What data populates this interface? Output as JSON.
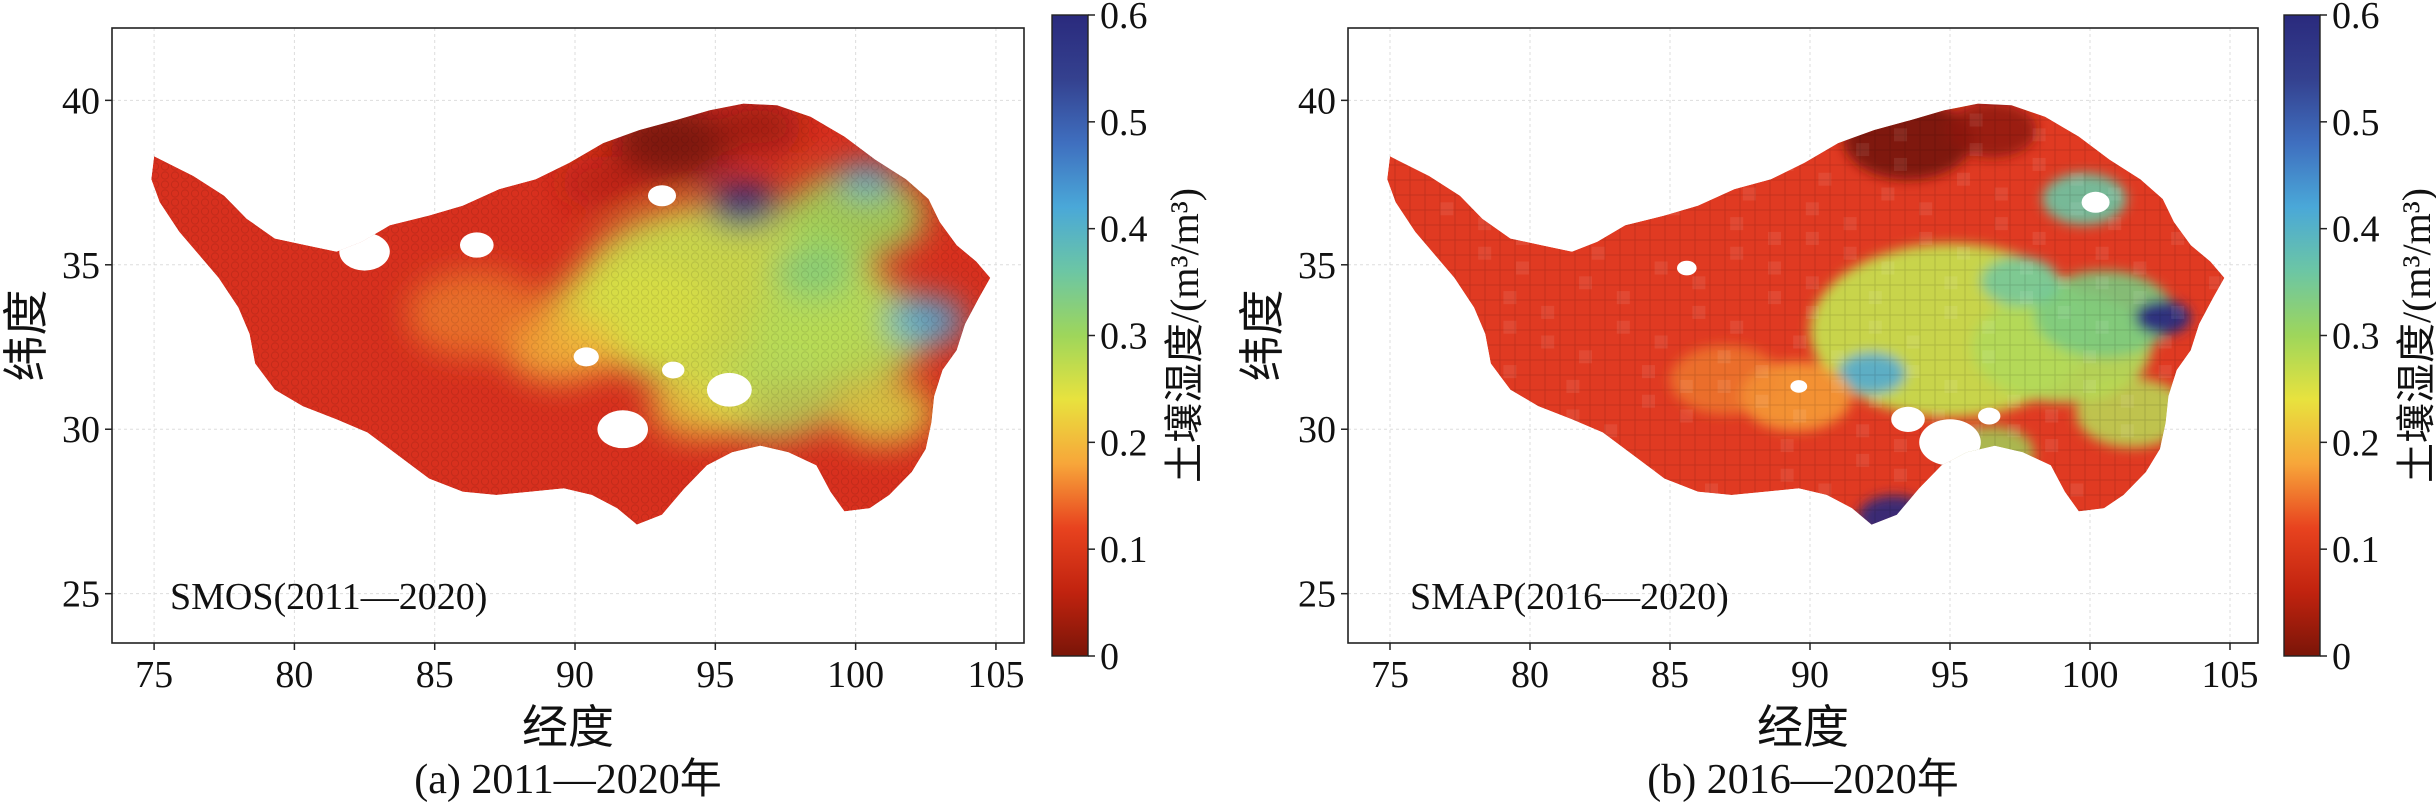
{
  "panels": [
    {
      "id": "a",
      "annotation": "SMOS(2011—2020)",
      "caption": "(a) 2011—2020年",
      "xlabel": "经度",
      "ylabel": "纬度",
      "xticks": [
        "75",
        "80",
        "85",
        "90",
        "95",
        "100",
        "105"
      ],
      "yticks": [
        "25",
        "30",
        "35",
        "40"
      ],
      "xlim": [
        73.5,
        106
      ],
      "ylim": [
        23.5,
        42.2
      ],
      "colorbar": {
        "label": "土壤湿度/(m³/m³)",
        "ticks": [
          "0",
          "0.1",
          "0.2",
          "0.3",
          "0.4",
          "0.5",
          "0.6"
        ],
        "range": [
          0,
          0.6
        ],
        "colormap": [
          "#7a1508",
          "#d8261e",
          "#f05a28",
          "#f7a63a",
          "#e8e23e",
          "#9ed65b",
          "#6cc6a4",
          "#4aa8d8",
          "#3f6fbf",
          "#2a2a7d"
        ]
      },
      "map": {
        "region": "Qinghai-Tibet Plateau",
        "style": "hexagonal retrieval grid",
        "colors": {
          "dry": "#d8301e",
          "very_dry": "#7a1508",
          "moist": "#c6dc4e",
          "wet": "#4aa8d8",
          "very_wet": "#2a2a7d"
        }
      }
    },
    {
      "id": "b",
      "annotation": "SMAP(2016—2020)",
      "caption": "(b) 2016—2020年",
      "xlabel": "经度",
      "ylabel": "纬度",
      "xticks": [
        "75",
        "80",
        "85",
        "90",
        "95",
        "100",
        "105"
      ],
      "yticks": [
        "25",
        "30",
        "35",
        "40"
      ],
      "xlim": [
        73.5,
        106
      ],
      "ylim": [
        23.5,
        42.2
      ],
      "colorbar": {
        "label": "土壤湿度/(m³/m³)",
        "ticks": [
          "0",
          "0.1",
          "0.2",
          "0.3",
          "0.4",
          "0.5",
          "0.6"
        ],
        "range": [
          0,
          0.6
        ],
        "colormap": [
          "#7a1508",
          "#d8261e",
          "#f05a28",
          "#f7a63a",
          "#e8e23e",
          "#9ed65b",
          "#6cc6a4",
          "#4aa8d8",
          "#3f6fbf",
          "#2a2a7d"
        ]
      },
      "map": {
        "region": "Qinghai-Tibet Plateau",
        "style": "square pixel grid",
        "colors": {
          "dry": "#e03a22",
          "very_dry": "#7a1508",
          "moist": "#c6dc4e",
          "wet": "#4aa8d8",
          "very_wet": "#2a2a7d"
        }
      }
    }
  ]
}
